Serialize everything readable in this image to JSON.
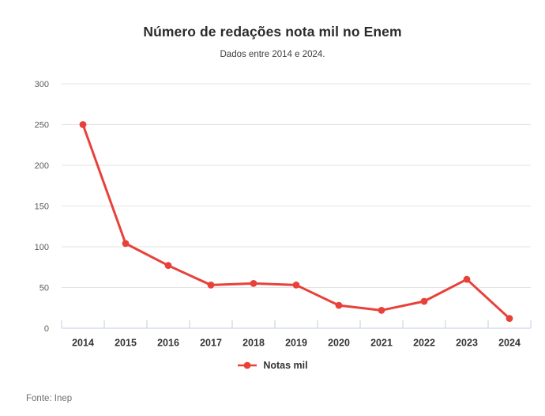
{
  "title": "Número de redações nota mil no Enem",
  "subtitle": "Dados entre 2014 e 2024.",
  "source": "Fonte: Inep",
  "legend": {
    "label": "Notas mil"
  },
  "colors": {
    "line": "#e8413a",
    "point": "#e8413a",
    "gridline": "#e3e3e3",
    "axis": "#c5cde0",
    "title": "#2b2b2b",
    "subtitle": "#3d3d3d",
    "y_label": "#5a5a5a",
    "x_label": "#333333",
    "source": "#6f6f6f"
  },
  "chart_data": {
    "type": "line",
    "title": "Número de redações nota mil no Enem",
    "subtitle": "Dados entre 2014 e 2024.",
    "categories": [
      "2014",
      "2015",
      "2016",
      "2017",
      "2018",
      "2019",
      "2020",
      "2021",
      "2022",
      "2023",
      "2024"
    ],
    "series": [
      {
        "name": "Notas mil",
        "values": [
          250,
          104,
          77,
          53,
          55,
          53,
          28,
          22,
          33,
          60,
          12
        ]
      }
    ],
    "xlabel": "",
    "ylabel": "",
    "ylim": [
      0,
      300
    ],
    "yticks": [
      0,
      50,
      100,
      150,
      200,
      250,
      300
    ],
    "grid": "horizontal",
    "legend_position": "bottom",
    "source_note": "Fonte: Inep"
  }
}
